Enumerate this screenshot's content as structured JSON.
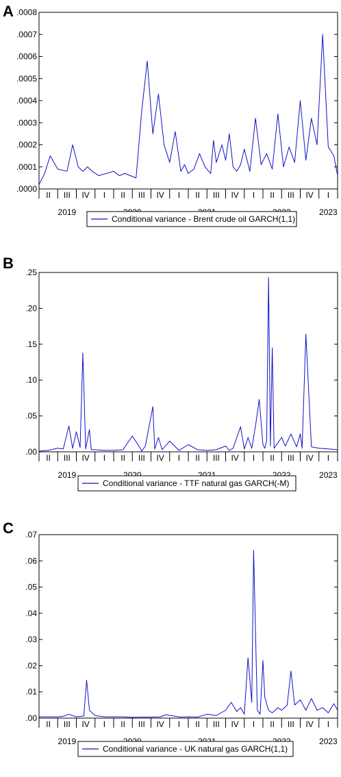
{
  "chart_data": [
    {
      "type": "line",
      "panel": "A",
      "legend": "Conditional variance - Brent crude oil GARCH(1,1)",
      "color": "#1010c8",
      "yticks": [
        ".0000",
        ".0001",
        ".0002",
        ".0003",
        ".0004",
        ".0005",
        ".0006",
        ".0007",
        ".0008"
      ],
      "ylim": [
        0,
        0.0008
      ],
      "quarters": [
        "II",
        "III",
        "IV",
        "I",
        "II",
        "III",
        "IV",
        "I",
        "II",
        "III",
        "IV",
        "I",
        "II",
        "III",
        "IV",
        "I"
      ],
      "years": [
        "2019",
        "2020",
        "2021",
        "2022",
        "2023"
      ],
      "series": [
        {
          "name": "Conditional variance - Brent crude oil GARCH(1,1)",
          "x": [
            0,
            0.3,
            0.6,
            1.0,
            1.5,
            1.8,
            2.1,
            2.35,
            2.6,
            2.85,
            3.2,
            3.6,
            4.0,
            4.3,
            4.6,
            4.9,
            5.2,
            5.5,
            5.8,
            6.1,
            6.4,
            6.7,
            7.0,
            7.3,
            7.6,
            7.8,
            8.0,
            8.3,
            8.6,
            8.9,
            9.2,
            9.35,
            9.5,
            9.8,
            10.0,
            10.2,
            10.4,
            10.6,
            10.8,
            11.0,
            11.3,
            11.6,
            11.9,
            12.2,
            12.5,
            12.8,
            13.1,
            13.4,
            13.7,
            14.0,
            14.3,
            14.6,
            14.9,
            15.2,
            15.5,
            15.8,
            16.0
          ],
          "values": [
            2e-05,
            7e-05,
            0.00015,
            9e-05,
            8e-05,
            0.0002,
            0.0001,
            8e-05,
            0.0001,
            8e-05,
            6e-05,
            7e-05,
            8e-05,
            6e-05,
            7e-05,
            6e-05,
            5e-05,
            0.00035,
            0.00058,
            0.00025,
            0.00043,
            0.0002,
            0.00012,
            0.00026,
            8e-05,
            0.00011,
            7e-05,
            9e-05,
            0.00016,
            0.0001,
            7e-05,
            0.00022,
            0.00012,
            0.0002,
            0.00013,
            0.00025,
            0.0001,
            8e-05,
            0.00011,
            0.00018,
            8e-05,
            0.00032,
            0.00011,
            0.00016,
            9e-05,
            0.00034,
            0.0001,
            0.00019,
            0.00012,
            0.0004,
            0.00013,
            0.00032,
            0.0002,
            0.0007,
            0.00019,
            0.00015,
            6e-05
          ]
        }
      ]
    },
    {
      "type": "line",
      "panel": "B",
      "legend": "Conditional variance - TTF natural gas GARCH(-M)",
      "color": "#1010c8",
      "yticks": [
        ".00",
        ".05",
        ".10",
        ".15",
        ".20",
        ".25"
      ],
      "ylim": [
        0,
        0.25
      ],
      "quarters": [
        "II",
        "III",
        "IV",
        "I",
        "II",
        "III",
        "IV",
        "I",
        "II",
        "III",
        "IV",
        "I",
        "II",
        "III",
        "IV",
        "I"
      ],
      "years": [
        "2019",
        "2020",
        "2021",
        "2022",
        "2023"
      ],
      "series": [
        {
          "name": "Conditional variance - TTF natural gas GARCH(-M)",
          "x": [
            0,
            0.5,
            1.0,
            1.3,
            1.6,
            1.8,
            2.0,
            2.2,
            2.35,
            2.5,
            2.7,
            2.8,
            3.0,
            3.5,
            4.0,
            4.5,
            5.0,
            5.4,
            5.5,
            5.7,
            6.1,
            6.2,
            6.4,
            6.6,
            7.0,
            7.5,
            8.0,
            8.5,
            9.0,
            9.5,
            10.0,
            10.2,
            10.4,
            10.8,
            11.0,
            11.2,
            11.4,
            11.6,
            11.8,
            12.0,
            12.1,
            12.2,
            12.3,
            12.4,
            12.5,
            12.6,
            13.0,
            13.2,
            13.5,
            13.8,
            14.0,
            14.1,
            14.3,
            14.6,
            15.0,
            15.5,
            16.0
          ],
          "values": [
            0.001,
            0.002,
            0.005,
            0.004,
            0.036,
            0.005,
            0.028,
            0.006,
            0.138,
            0.004,
            0.031,
            0.003,
            0.003,
            0.002,
            0.002,
            0.003,
            0.022,
            0.006,
            0.001,
            0.008,
            0.063,
            0.004,
            0.02,
            0.003,
            0.015,
            0.002,
            0.01,
            0.003,
            0.002,
            0.003,
            0.008,
            0.002,
            0.005,
            0.035,
            0.004,
            0.02,
            0.005,
            0.036,
            0.073,
            0.01,
            0.005,
            0.015,
            0.243,
            0.008,
            0.145,
            0.005,
            0.02,
            0.008,
            0.025,
            0.007,
            0.025,
            0.005,
            0.164,
            0.007,
            0.005,
            0.004,
            0.003
          ]
        }
      ]
    },
    {
      "type": "line",
      "panel": "C",
      "legend": "Conditional variance - UK natural gas GARCH(1,1)",
      "color": "#1010c8",
      "yticks": [
        ".00",
        ".01",
        ".02",
        ".03",
        ".04",
        ".05",
        ".06",
        ".07"
      ],
      "ylim": [
        0,
        0.07
      ],
      "quarters": [
        "II",
        "III",
        "IV",
        "I",
        "II",
        "III",
        "IV",
        "I",
        "II",
        "III",
        "IV",
        "I",
        "II",
        "III",
        "IV",
        "I"
      ],
      "years": [
        "2019",
        "2020",
        "2021",
        "2022",
        "2023"
      ],
      "series": [
        {
          "name": "Conditional variance - UK natural gas GARCH(1,1)",
          "x": [
            0,
            0.5,
            1.0,
            1.3,
            1.6,
            2.0,
            2.4,
            2.55,
            2.7,
            3.0,
            3.5,
            4.0,
            4.5,
            5.0,
            5.5,
            6.0,
            6.5,
            6.8,
            7.2,
            7.6,
            8.0,
            8.5,
            9.0,
            9.5,
            10.0,
            10.3,
            10.6,
            10.8,
            11.0,
            11.2,
            11.4,
            11.5,
            11.7,
            11.85,
            12.0,
            12.1,
            12.3,
            12.5,
            12.8,
            13.0,
            13.3,
            13.5,
            13.7,
            14.0,
            14.3,
            14.6,
            14.9,
            15.2,
            15.5,
            15.8,
            16.0
          ],
          "values": [
            0.0005,
            0.0005,
            0.0005,
            0.0007,
            0.0015,
            0.0005,
            0.0008,
            0.0145,
            0.003,
            0.001,
            0.0005,
            0.0005,
            0.0005,
            0.0003,
            0.0004,
            0.0004,
            0.0005,
            0.0013,
            0.0008,
            0.0004,
            0.0005,
            0.0004,
            0.0015,
            0.001,
            0.003,
            0.006,
            0.0025,
            0.004,
            0.0015,
            0.023,
            0.006,
            0.064,
            0.003,
            0.0015,
            0.022,
            0.008,
            0.003,
            0.002,
            0.004,
            0.003,
            0.005,
            0.018,
            0.005,
            0.007,
            0.003,
            0.0075,
            0.003,
            0.004,
            0.002,
            0.0055,
            0.003
          ]
        }
      ]
    }
  ]
}
